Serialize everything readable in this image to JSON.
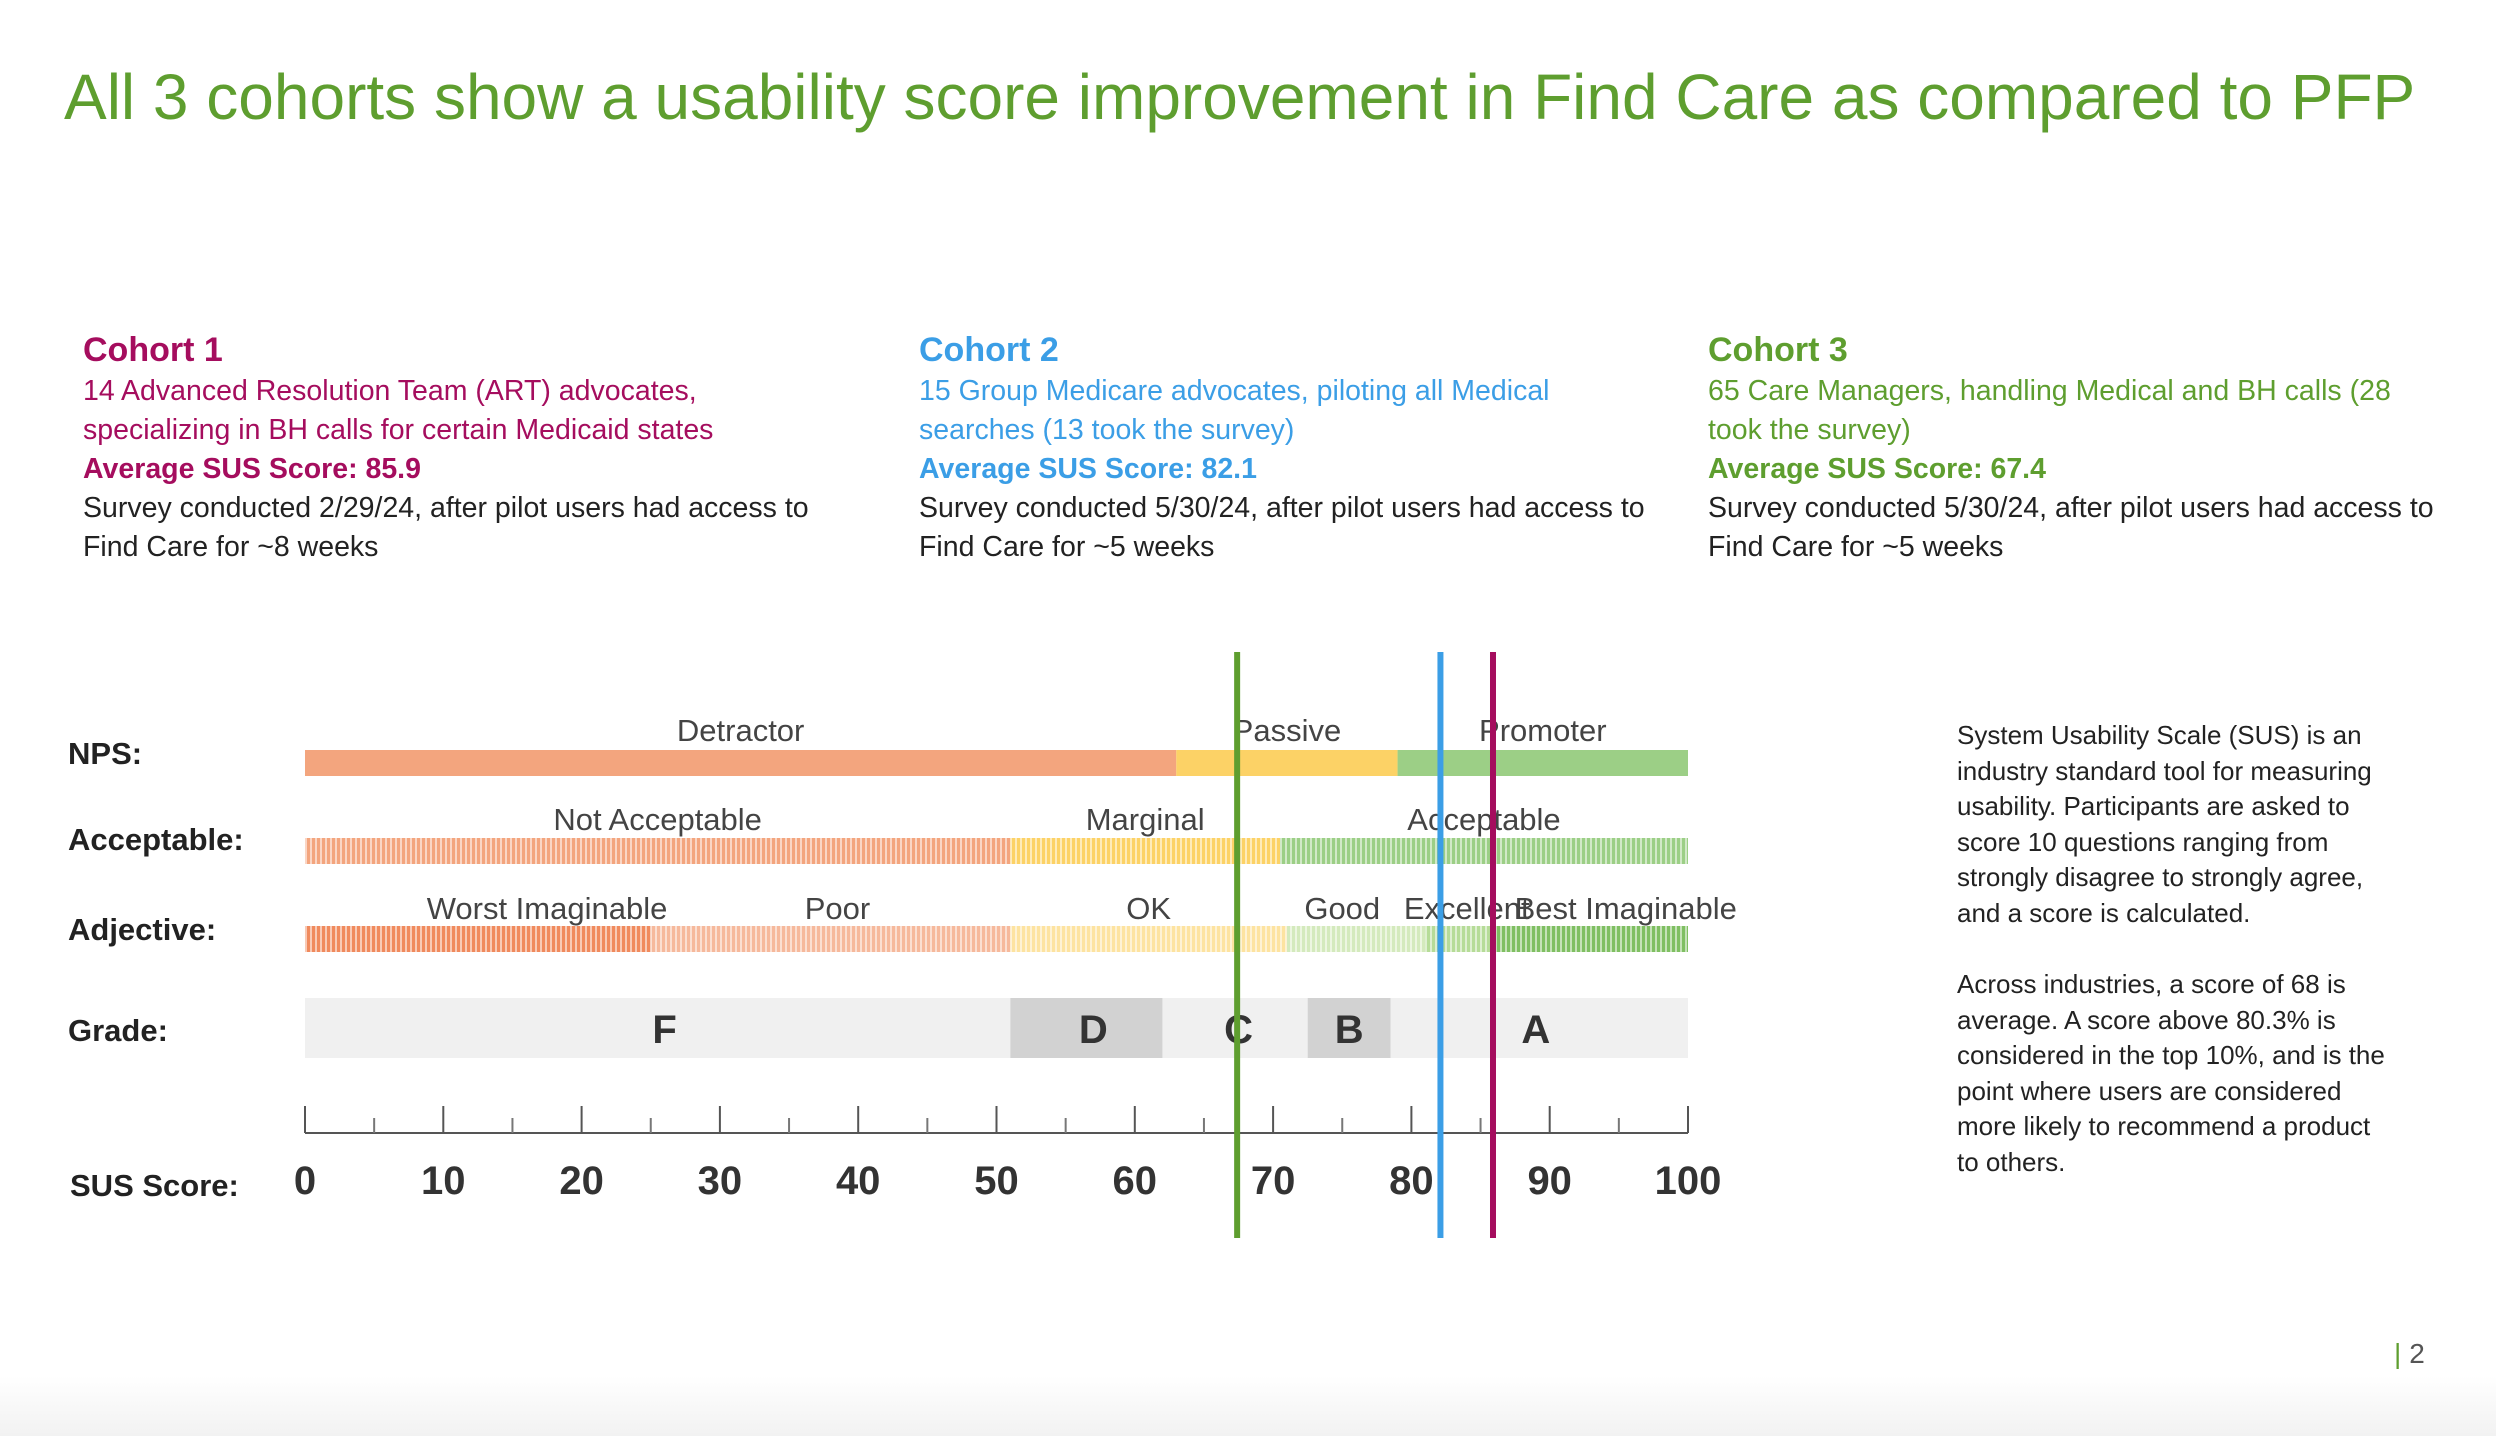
{
  "page": {
    "title": "All 3 cohorts show a usability score improvement in Find Care as compared to PFP",
    "page_number": "2",
    "page_number_bar": "|"
  },
  "cohorts": [
    {
      "name": "Cohort 1",
      "description": "14 Advanced Resolution Team (ART) advocates, specializing in BH calls for certain Medicaid states",
      "average": "Average SUS Score: 85.9",
      "survey": "Survey conducted 2/29/24, after pilot users had access to Find Care for ~8 weeks",
      "color": "#a50d5e"
    },
    {
      "name": "Cohort 2",
      "description": "15 Group Medicare advocates, piloting all Medical searches (13 took the survey)",
      "average": "Average SUS Score: 82.1",
      "survey": "Survey conducted 5/30/24, after pilot users had access to Find Care for ~5 weeks",
      "color": "#3b9ee6"
    },
    {
      "name": "Cohort 3",
      "description": "65 Care Managers, handling Medical and BH calls (28 took the survey)",
      "average": "Average SUS Score: 67.4",
      "survey": "Survey conducted 5/30/24, after pilot users had access to Find Care for ~5 weeks",
      "color": "#5e9e2f"
    }
  ],
  "note": {
    "paragraph1": "System Usability Scale (SUS) is an industry standard tool for measuring usability. Participants are asked to score 10 questions ranging from strongly disagree to strongly agree, and a score is calculated.",
    "paragraph2": "Across industries, a score of 68 is average. A score above 80.3% is considered in the top 10%, and is the point where users are considered more likely to recommend a product to others."
  },
  "chart_data": {
    "type": "bar",
    "xlim": [
      0,
      100
    ],
    "ticks": [
      0,
      10,
      20,
      30,
      40,
      50,
      60,
      70,
      80,
      90,
      100
    ],
    "minor_ticks": [
      5,
      15,
      25,
      35,
      45,
      55,
      65,
      75,
      85,
      95
    ],
    "row_labels": {
      "nps": "NPS:",
      "acceptable": "Acceptable:",
      "adjective": "Adjective:",
      "grade": "Grade:",
      "sus": "SUS Score:"
    },
    "nps": [
      {
        "label": "Detractor",
        "from": 0,
        "to": 63,
        "color": "#f3a57e"
      },
      {
        "label": "Passive",
        "from": 63,
        "to": 79,
        "color": "#fcd266"
      },
      {
        "label": "Promoter",
        "from": 79,
        "to": 100,
        "color": "#9ccf86"
      }
    ],
    "acceptable": [
      {
        "label": "Not Acceptable",
        "from": 0,
        "to": 51,
        "color": "#f3a57e"
      },
      {
        "label": "Marginal",
        "from": 51,
        "to": 70.5,
        "color": "#fcd266"
      },
      {
        "label": "Acceptable",
        "from": 70.5,
        "to": 100,
        "color": "#9ccf86"
      }
    ],
    "adjective": [
      {
        "label": "Worst Imaginable",
        "from": 0,
        "to": 25,
        "color": "#f08a5d"
      },
      {
        "label": "Poor",
        "from": 25,
        "to": 51,
        "color": "#f6b99c"
      },
      {
        "label": "OK",
        "from": 51,
        "to": 71,
        "color": "#fde3a0"
      },
      {
        "label": "Good",
        "from": 71,
        "to": 81,
        "color": "#d4eabd"
      },
      {
        "label": "Excellent",
        "from": 81,
        "to": 86,
        "color": "#b6dc98"
      },
      {
        "label": "Best Imaginable",
        "from": 86,
        "to": 100,
        "color": "#7fbf62"
      }
    ],
    "grades": [
      {
        "label": "F",
        "from": 0,
        "to": 51,
        "color": "#f0f0f0"
      },
      {
        "label": "D",
        "from": 51,
        "to": 62,
        "color": "#d2d2d2"
      },
      {
        "label": "C",
        "from": 62,
        "to": 72.5,
        "color": "#f0f0f0"
      },
      {
        "label": "B",
        "from": 72.5,
        "to": 78.5,
        "color": "#d2d2d2"
      },
      {
        "label": "A",
        "from": 78.5,
        "to": 100,
        "color": "#f0f0f0"
      }
    ],
    "markers": [
      {
        "cohort": "Cohort 3",
        "score": 67.4,
        "color": "#5e9e2f"
      },
      {
        "cohort": "Cohort 2",
        "score": 82.1,
        "color": "#3b9ee6"
      },
      {
        "cohort": "Cohort 1",
        "score": 85.9,
        "color": "#a50d5e"
      }
    ]
  }
}
